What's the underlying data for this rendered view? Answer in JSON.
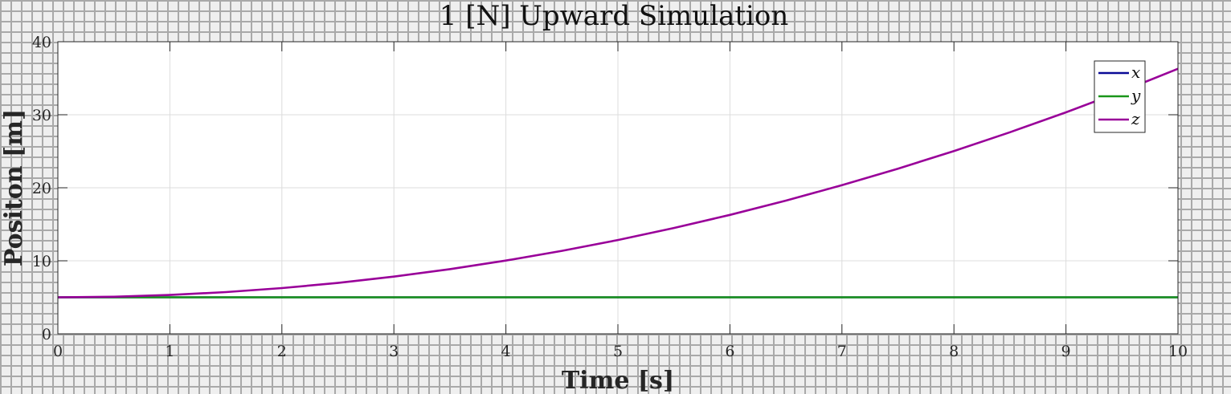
{
  "chart_data": {
    "type": "line",
    "title": "1 [N] Upward Simulation",
    "xlabel": "Time [s]",
    "ylabel": "Positon [m]",
    "xlim": [
      0,
      10
    ],
    "ylim": [
      0,
      40
    ],
    "xticks": [
      0,
      1,
      2,
      3,
      4,
      5,
      6,
      7,
      8,
      9,
      10
    ],
    "yticks": [
      0,
      10,
      20,
      30,
      40
    ],
    "grid": true,
    "legend_position": "top-right",
    "x": [
      0,
      0.5,
      1,
      1.5,
      2,
      2.5,
      3,
      3.5,
      4,
      4.5,
      5,
      5.5,
      6,
      6.5,
      7,
      7.5,
      8,
      8.5,
      9,
      9.5,
      10
    ],
    "series": [
      {
        "name": "x",
        "color": "#0a0a96",
        "values": [
          5,
          5,
          5,
          5,
          5,
          5,
          5,
          5,
          5,
          5,
          5,
          5,
          5,
          5,
          5,
          5,
          5,
          5,
          5,
          5,
          5
        ]
      },
      {
        "name": "y",
        "color": "#1a961a",
        "values": [
          5,
          5,
          5,
          5,
          5,
          5,
          5,
          5,
          5,
          5,
          5,
          5,
          5,
          5,
          5,
          5,
          5,
          5,
          5,
          5,
          5
        ]
      },
      {
        "name": "z",
        "color": "#990099",
        "values": [
          5,
          5.08,
          5.32,
          5.71,
          6.26,
          6.97,
          7.83,
          8.86,
          10.03,
          11.36,
          12.85,
          14.49,
          16.29,
          18.24,
          20.35,
          22.61,
          25.03,
          27.6,
          30.33,
          33.22,
          36.3
        ]
      }
    ]
  }
}
